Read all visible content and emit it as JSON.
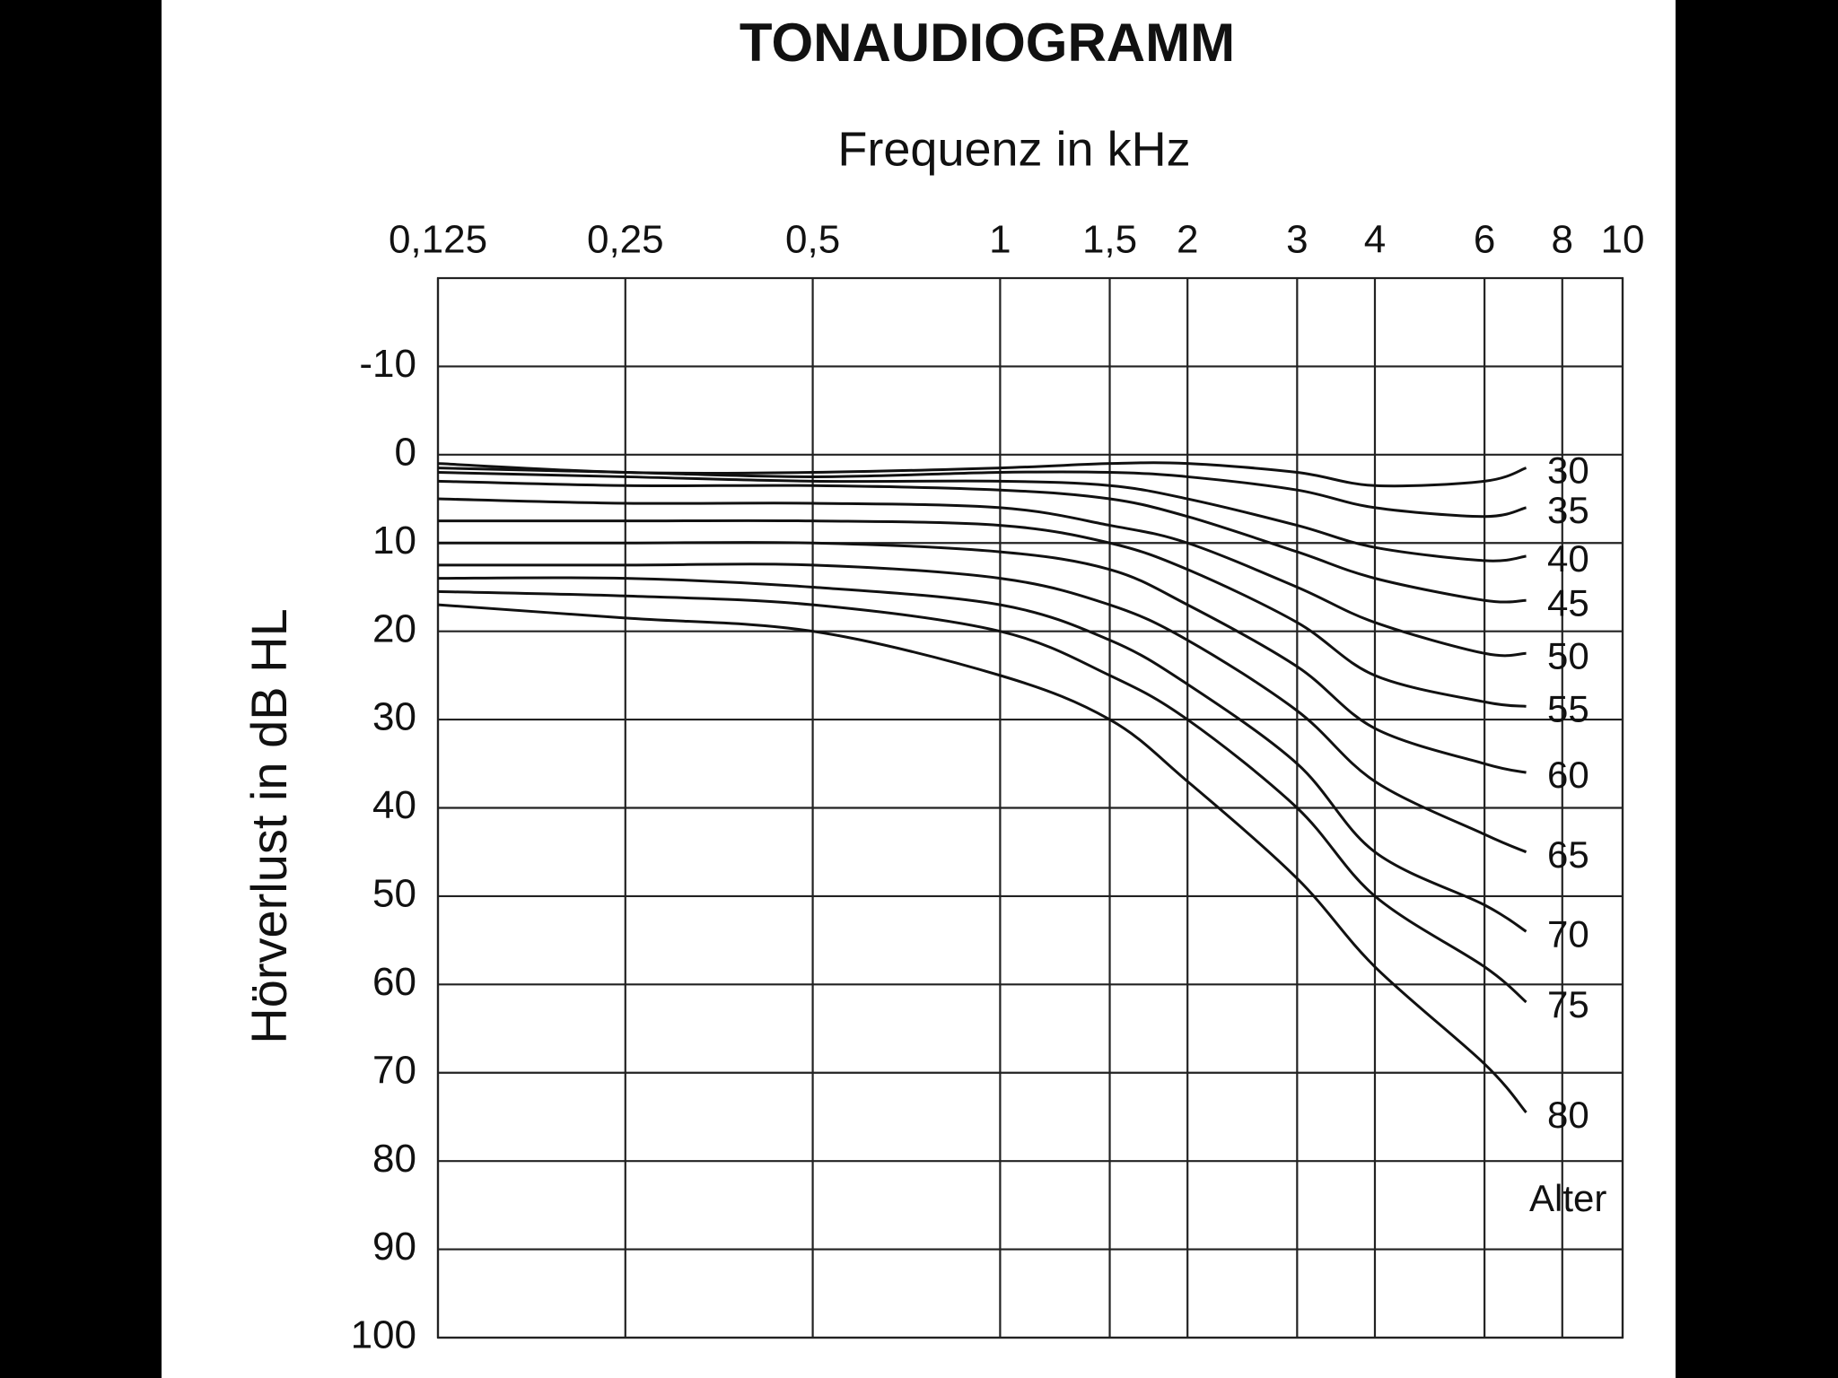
{
  "chart_data": {
    "type": "line",
    "title": "TONAUDIOGRAMM",
    "x_label": "Frequenz in kHz",
    "y_label": "Hörverlust in dB HL",
    "annotation": "Alter",
    "x": [
      0.125,
      0.25,
      0.5,
      1,
      1.5,
      2,
      3,
      4,
      6,
      7
    ],
    "xscale": "log",
    "xlim": [
      0.125,
      10
    ],
    "xticks": [
      {
        "value": 0.125,
        "label": "0,125"
      },
      {
        "value": 0.25,
        "label": "0,25"
      },
      {
        "value": 0.5,
        "label": "0,5"
      },
      1,
      {
        "value": 1.5,
        "label": "1,5"
      },
      2,
      3,
      4,
      6,
      8,
      10
    ],
    "ylim": [
      -20,
      100
    ],
    "yinverted": true,
    "yticks": [
      -10,
      0,
      10,
      20,
      30,
      40,
      50,
      60,
      70,
      80,
      90,
      100
    ],
    "grid": true,
    "series": [
      {
        "name": "30",
        "color": "#111111",
        "values": [
          1,
          2,
          2,
          1.5,
          1,
          1,
          2,
          3.5,
          3,
          1.5
        ]
      },
      {
        "name": "35",
        "color": "#111111",
        "values": [
          1.5,
          2,
          2.5,
          2,
          2,
          2.5,
          4,
          6,
          7,
          6
        ]
      },
      {
        "name": "40",
        "color": "#111111",
        "values": [
          2,
          2.5,
          3,
          3,
          3.5,
          5,
          8,
          10.5,
          12,
          11.5
        ]
      },
      {
        "name": "45",
        "color": "#111111",
        "values": [
          3,
          3.5,
          3.5,
          4,
          5,
          7,
          11,
          14,
          16.5,
          16.5
        ]
      },
      {
        "name": "50",
        "color": "#111111",
        "values": [
          5,
          5.5,
          5.5,
          6,
          8,
          10,
          15,
          19,
          22.5,
          22.5
        ]
      },
      {
        "name": "55",
        "color": "#111111",
        "values": [
          7.5,
          7.5,
          7.5,
          8,
          10,
          13,
          19,
          25,
          28,
          28.5
        ]
      },
      {
        "name": "60",
        "color": "#111111",
        "values": [
          10,
          10,
          10,
          11,
          13,
          17,
          24,
          31,
          35,
          36
        ]
      },
      {
        "name": "65",
        "color": "#111111",
        "values": [
          12.5,
          12.5,
          12.5,
          14,
          17,
          21,
          29,
          37,
          43,
          45
        ]
      },
      {
        "name": "70",
        "color": "#111111",
        "values": [
          14,
          14,
          15,
          17,
          21,
          26,
          35,
          45,
          51,
          54
        ]
      },
      {
        "name": "75",
        "color": "#111111",
        "values": [
          15.5,
          16,
          17,
          20,
          25,
          30,
          40,
          50,
          58,
          62
        ]
      },
      {
        "name": "80",
        "color": "#111111",
        "values": [
          17,
          18.5,
          20,
          25,
          30,
          37,
          48,
          58,
          69,
          74.5
        ]
      }
    ]
  }
}
